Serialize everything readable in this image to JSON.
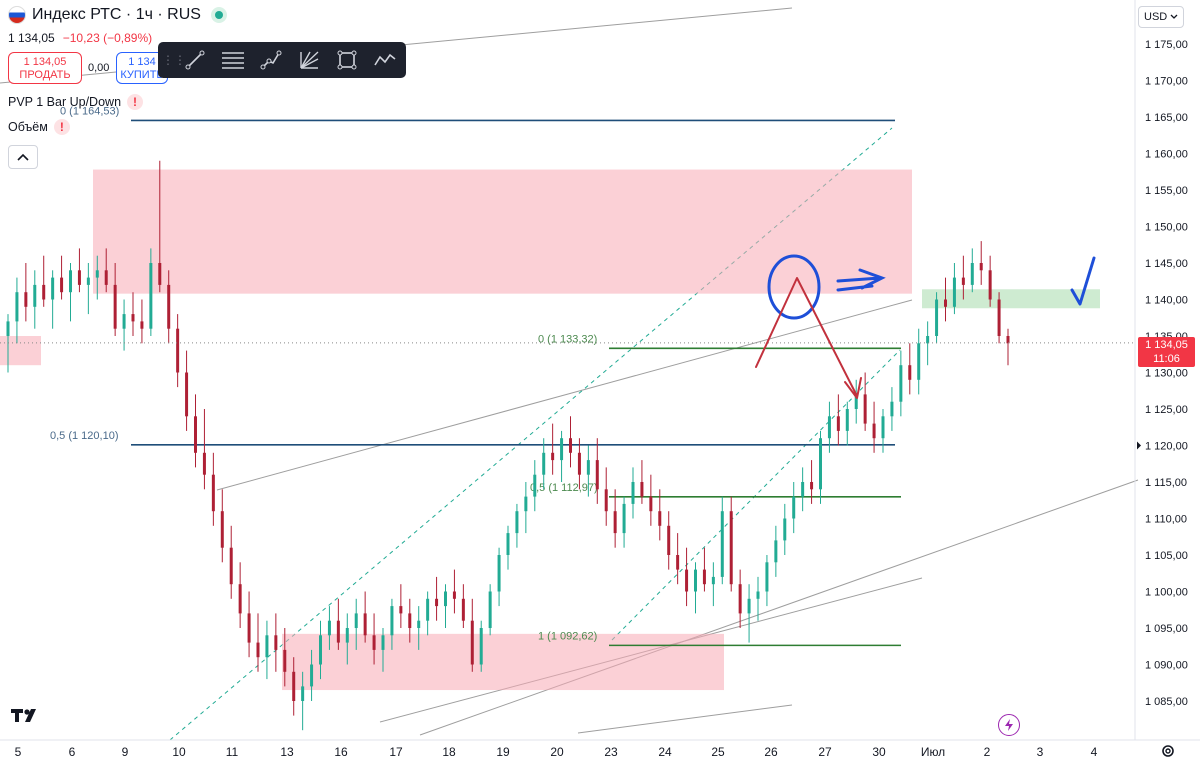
{
  "header": {
    "title": "Индекс РТС · 1ч · RUS",
    "price": "1 134,05",
    "change": "−10,23 (−0,89%)"
  },
  "trade": {
    "sell_price": "1 134,05",
    "sell_label": "ПРОДАТЬ",
    "spread": "0,00",
    "buy_price": "1 134",
    "buy_label": "КУПИТЬ"
  },
  "toolbar": {
    "tools": [
      "trend-line-icon",
      "fib-retracement-icon",
      "path-icon",
      "gann-fan-icon",
      "rectangle-icon",
      "polyline-icon"
    ]
  },
  "indicators": [
    "PVP 1 Bar Up/Down",
    "Объём"
  ],
  "currency": "USD",
  "last_price_badge": {
    "price": "1 134,05",
    "time": "11:06"
  },
  "colors": {
    "up": "#22ab94",
    "down": "#ae2035",
    "zone_red": "#f7a9b4",
    "zone_green": "#a6dbab",
    "fib_blue": "#1f4e79",
    "fib_green": "#2e7d32",
    "annotation_blue": "#1e4fd8",
    "annotation_red": "#c2313d",
    "channel": "#9e9e9e"
  },
  "chart_data": {
    "type": "candlestick",
    "ylim": [
      1080,
      1180
    ],
    "y_ticks": [
      1085,
      1090,
      1095,
      1100,
      1105,
      1110,
      1115,
      1120,
      1125,
      1130,
      1135,
      1140,
      1145,
      1150,
      1155,
      1160,
      1165,
      1170,
      1175
    ],
    "y_tick_labels": [
      "1 085,00",
      "1 090,00",
      "1 095,00",
      "1 100,00",
      "1 105,00",
      "1 110,00",
      "1 115,00",
      "1 120,00",
      "1 125,00",
      "1 130,00",
      "1 135,00",
      "1 140,00",
      "1 145,00",
      "1 150,00",
      "1 155,00",
      "1 160,00",
      "1 165,00",
      "1 170,00",
      "1 175,00"
    ],
    "x_ticks": [
      "5",
      "6",
      "9",
      "10",
      "11",
      "13",
      "16",
      "17",
      "18",
      "19",
      "20",
      "23",
      "24",
      "25",
      "26",
      "27",
      "30",
      "Июл",
      "2",
      "3",
      "4"
    ],
    "extra_price_label": "1 120,00",
    "fib_upper": {
      "levels": [
        {
          "ratio": "0",
          "price": 1164.53,
          "label": "0 (1 164,53)"
        },
        {
          "ratio": "0.5",
          "price": 1120.1,
          "label": "0,5 (1 120,10)"
        }
      ]
    },
    "fib_lower": {
      "levels": [
        {
          "ratio": "0",
          "price": 1133.32,
          "label": "0 (1 133,32)"
        },
        {
          "ratio": "0.5",
          "price": 1112.97,
          "label": "0,5 (1 112,97)"
        },
        {
          "ratio": "1",
          "price": 1092.62,
          "label": "1 (1 092,62)"
        }
      ]
    },
    "zones": [
      {
        "color": "red",
        "from_price": 1140.8,
        "to_price": 1157.8
      },
      {
        "color": "red",
        "from_price": 1086.5,
        "to_price": 1094.2
      },
      {
        "color": "red",
        "from_price": 1131.0,
        "to_price": 1135.0
      },
      {
        "color": "green",
        "from_price": 1138.8,
        "to_price": 1141.4
      }
    ],
    "last_price": 1134.05,
    "candles": [
      [
        1135,
        1138,
        1130,
        1137
      ],
      [
        1137,
        1143,
        1134,
        1141
      ],
      [
        1141,
        1145,
        1137,
        1139
      ],
      [
        1139,
        1144,
        1136,
        1142
      ],
      [
        1142,
        1146,
        1139,
        1140
      ],
      [
        1140,
        1144,
        1136,
        1143
      ],
      [
        1143,
        1146,
        1140,
        1141
      ],
      [
        1141,
        1145,
        1137,
        1144
      ],
      [
        1144,
        1147,
        1141,
        1142
      ],
      [
        1142,
        1145,
        1138,
        1143
      ],
      [
        1143,
        1146,
        1140,
        1144
      ],
      [
        1144,
        1147,
        1141,
        1142
      ],
      [
        1142,
        1145,
        1135,
        1136
      ],
      [
        1136,
        1140,
        1133,
        1138
      ],
      [
        1138,
        1141,
        1135,
        1137
      ],
      [
        1137,
        1140,
        1134,
        1136
      ],
      [
        1136,
        1147,
        1135,
        1145
      ],
      [
        1145,
        1159,
        1141,
        1142
      ],
      [
        1142,
        1144,
        1134,
        1136
      ],
      [
        1136,
        1138,
        1128,
        1130
      ],
      [
        1130,
        1133,
        1122,
        1124
      ],
      [
        1124,
        1127,
        1117,
        1119
      ],
      [
        1119,
        1125,
        1114,
        1116
      ],
      [
        1116,
        1119,
        1109,
        1111
      ],
      [
        1111,
        1114,
        1104,
        1106
      ],
      [
        1106,
        1109,
        1099,
        1101
      ],
      [
        1101,
        1104,
        1095,
        1097
      ],
      [
        1097,
        1100,
        1091,
        1093
      ],
      [
        1093,
        1097,
        1089,
        1091
      ],
      [
        1091,
        1096,
        1088,
        1094
      ],
      [
        1094,
        1097,
        1089,
        1092
      ],
      [
        1092,
        1095,
        1087,
        1089
      ],
      [
        1089,
        1091,
        1083,
        1085
      ],
      [
        1085,
        1089,
        1081,
        1087
      ],
      [
        1087,
        1092,
        1085,
        1090
      ],
      [
        1090,
        1096,
        1088,
        1094
      ],
      [
        1094,
        1098,
        1092,
        1096
      ],
      [
        1096,
        1099,
        1092,
        1093
      ],
      [
        1093,
        1097,
        1090,
        1095
      ],
      [
        1095,
        1099,
        1092,
        1097
      ],
      [
        1097,
        1100,
        1093,
        1094
      ],
      [
        1094,
        1097,
        1090,
        1092
      ],
      [
        1092,
        1095,
        1089,
        1094
      ],
      [
        1094,
        1099,
        1092,
        1098
      ],
      [
        1098,
        1101,
        1095,
        1097
      ],
      [
        1097,
        1099,
        1093,
        1095
      ],
      [
        1095,
        1098,
        1092,
        1096
      ],
      [
        1096,
        1100,
        1094,
        1099
      ],
      [
        1099,
        1102,
        1096,
        1098
      ],
      [
        1098,
        1101,
        1095,
        1100
      ],
      [
        1100,
        1103,
        1097,
        1099
      ],
      [
        1099,
        1101,
        1095,
        1096
      ],
      [
        1096,
        1099,
        1089,
        1090
      ],
      [
        1090,
        1096,
        1089,
        1095
      ],
      [
        1095,
        1101,
        1094,
        1100
      ],
      [
        1100,
        1106,
        1098,
        1105
      ],
      [
        1105,
        1109,
        1103,
        1108
      ],
      [
        1108,
        1112,
        1106,
        1111
      ],
      [
        1111,
        1115,
        1108,
        1113
      ],
      [
        1113,
        1118,
        1111,
        1116
      ],
      [
        1116,
        1121,
        1114,
        1119
      ],
      [
        1119,
        1123,
        1116,
        1118
      ],
      [
        1118,
        1122,
        1115,
        1121
      ],
      [
        1121,
        1124,
        1117,
        1119
      ],
      [
        1119,
        1121,
        1114,
        1116
      ],
      [
        1116,
        1120,
        1113,
        1118
      ],
      [
        1118,
        1121,
        1112,
        1114
      ],
      [
        1114,
        1117,
        1109,
        1111
      ],
      [
        1111,
        1114,
        1106,
        1108
      ],
      [
        1108,
        1113,
        1106,
        1112
      ],
      [
        1112,
        1117,
        1110,
        1115
      ],
      [
        1115,
        1118,
        1112,
        1113
      ],
      [
        1113,
        1116,
        1109,
        1111
      ],
      [
        1111,
        1114,
        1107,
        1109
      ],
      [
        1109,
        1111,
        1103,
        1105
      ],
      [
        1105,
        1108,
        1101,
        1103
      ],
      [
        1103,
        1106,
        1098,
        1100
      ],
      [
        1100,
        1104,
        1097,
        1103
      ],
      [
        1103,
        1106,
        1100,
        1101
      ],
      [
        1101,
        1104,
        1098,
        1102
      ],
      [
        1102,
        1113,
        1101,
        1111
      ],
      [
        1111,
        1113,
        1100,
        1101
      ],
      [
        1101,
        1103,
        1095,
        1097
      ],
      [
        1097,
        1101,
        1093,
        1099
      ],
      [
        1099,
        1102,
        1096,
        1100
      ],
      [
        1100,
        1105,
        1098,
        1104
      ],
      [
        1104,
        1109,
        1102,
        1107
      ],
      [
        1107,
        1112,
        1105,
        1110
      ],
      [
        1110,
        1115,
        1108,
        1113
      ],
      [
        1113,
        1117,
        1111,
        1115
      ],
      [
        1115,
        1118,
        1112,
        1114
      ],
      [
        1114,
        1122,
        1112,
        1121
      ],
      [
        1121,
        1126,
        1119,
        1124
      ],
      [
        1124,
        1127,
        1120,
        1122
      ],
      [
        1122,
        1126,
        1120,
        1125
      ],
      [
        1125,
        1129,
        1123,
        1127
      ],
      [
        1127,
        1130,
        1122,
        1123
      ],
      [
        1123,
        1126,
        1119,
        1121
      ],
      [
        1121,
        1125,
        1119,
        1124
      ],
      [
        1124,
        1128,
        1122,
        1126
      ],
      [
        1126,
        1133,
        1124,
        1131
      ],
      [
        1131,
        1134,
        1127,
        1129
      ],
      [
        1129,
        1136,
        1127,
        1134
      ],
      [
        1134,
        1137,
        1131,
        1135
      ],
      [
        1135,
        1141,
        1134,
        1140
      ],
      [
        1140,
        1143,
        1137,
        1139
      ],
      [
        1139,
        1145,
        1138,
        1143
      ],
      [
        1143,
        1146,
        1140,
        1142
      ],
      [
        1142,
        1147,
        1141,
        1145
      ],
      [
        1145,
        1148,
        1142,
        1144
      ],
      [
        1144,
        1146,
        1139,
        1140
      ],
      [
        1140,
        1141,
        1134,
        1135
      ],
      [
        1135,
        1136,
        1131,
        1134
      ]
    ]
  }
}
